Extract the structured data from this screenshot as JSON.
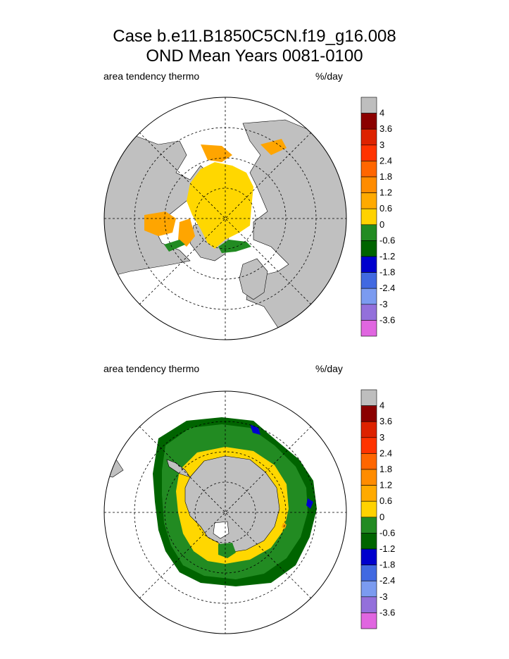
{
  "title_line1": "Case b.e11.B1850C5CN.f19_g16.008",
  "title_line2": "OND Mean   Years 0081-0100",
  "colors": {
    "land": "#c0c0c0",
    "yellow": "#ffd700",
    "orange": "#ffa500",
    "green": "#228b22",
    "dark_green": "#006400",
    "blue": "#0000cd",
    "grid": "#000000"
  },
  "panels": [
    {
      "id": "north",
      "left_label": "area tendency thermo",
      "right_label": "%/day",
      "hemisphere": "Northern Hemisphere",
      "colorbar_colors": [
        "#bebebe",
        "#8b0000",
        "#dd2200",
        "#ff3300",
        "#ff6600",
        "#ff8c00",
        "#ffaa00",
        "#ffd200",
        "#228b22",
        "#006400",
        "#0000cd",
        "#4169e1",
        "#7b9bf0",
        "#9370db",
        "#e066e0"
      ],
      "colorbar_labels": [
        "4",
        "3.6",
        "3",
        "2.4",
        "1.8",
        "1.2",
        "0.6",
        "0",
        "-0.6",
        "-1.2",
        "-1.8",
        "-2.4",
        "-3",
        "-3.6"
      ]
    },
    {
      "id": "south",
      "left_label": "area tendency thermo",
      "right_label": "%/day",
      "hemisphere": "Southern Hemisphere",
      "colorbar_colors": [
        "#bebebe",
        "#8b0000",
        "#dd2200",
        "#ff3300",
        "#ff6600",
        "#ff8c00",
        "#ffaa00",
        "#ffd200",
        "#228b22",
        "#006400",
        "#0000cd",
        "#4169e1",
        "#7b9bf0",
        "#9370db",
        "#e066e0"
      ],
      "colorbar_labels": [
        "4",
        "3.6",
        "3",
        "2.4",
        "1.8",
        "1.2",
        "0.6",
        "0",
        "-0.6",
        "-1.2",
        "-1.8",
        "-2.4",
        "-3",
        "-3.6"
      ]
    }
  ],
  "chart_data": [
    {
      "type": "heatmap",
      "title": "",
      "subtitle_left": "area tendency thermo",
      "subtitle_right": "%/day",
      "projection": "polar stereographic (north)",
      "color_levels": [
        -3.6,
        -3,
        -2.4,
        -1.8,
        -1.2,
        -0.6,
        0,
        0.6,
        1.2,
        1.8,
        2.4,
        3,
        3.6,
        4
      ],
      "dominant_values": "mostly 0 to 0.6 (yellow) over central Arctic ice pack; 0.6 to 1.8 (orange) along Hudson Bay, Baffin Bay and Siberian shelf edges; -0.6 to 0 (green) along Barents/Greenland sea ice edge"
    },
    {
      "type": "heatmap",
      "title": "",
      "subtitle_left": "area tendency thermo",
      "subtitle_right": "%/day",
      "projection": "polar stereographic (south)",
      "color_levels": [
        -3.6,
        -3,
        -2.4,
        -1.8,
        -1.2,
        -0.6,
        0,
        0.6,
        1.2,
        1.8,
        2.4,
        3,
        3.6,
        4
      ],
      "dominant_values": "mostly -0.6 to 0 (green) across outer Southern Ocean ice band; -1.2 to -0.6 (dark green) at outer margin; 0 to 0.6 (yellow) in coastal ring around Antarctica; small -1.8 to -1.2 (blue) patches"
    }
  ]
}
